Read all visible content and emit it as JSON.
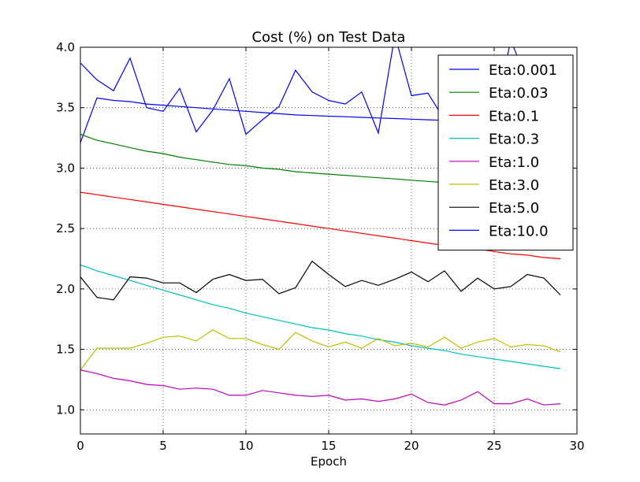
{
  "chart_data": {
    "type": "line",
    "title": "Cost (%) on Test Data",
    "xlabel": "Epoch",
    "ylabel": "",
    "xlim": [
      0,
      30
    ],
    "ylim": [
      0.8,
      4.0
    ],
    "xticks": [
      0,
      5,
      10,
      15,
      20,
      25,
      30
    ],
    "yticks": [
      1.0,
      1.5,
      2.0,
      2.5,
      3.0,
      3.5,
      4.0
    ],
    "xtick_labels": [
      "0",
      "5",
      "10",
      "15",
      "20",
      "25",
      "30"
    ],
    "ytick_labels": [
      "1.0",
      "1.5",
      "2.0",
      "2.5",
      "3.0",
      "3.5",
      "4.0"
    ],
    "grid": true,
    "legend_position": "top-right",
    "x": [
      0,
      1,
      2,
      3,
      4,
      5,
      6,
      7,
      8,
      9,
      10,
      11,
      12,
      13,
      14,
      15,
      16,
      17,
      18,
      19,
      20,
      21,
      22,
      23,
      24,
      25,
      26,
      27,
      28,
      29
    ],
    "series": [
      {
        "name": "Eta:0.001",
        "color": "#0000ff",
        "values": [
          3.21,
          3.58,
          3.56,
          3.55,
          3.53,
          3.52,
          3.51,
          3.5,
          3.49,
          3.48,
          3.47,
          3.46,
          3.45,
          3.44,
          3.435,
          3.43,
          3.425,
          3.42,
          3.415,
          3.41,
          3.405,
          3.4,
          3.395,
          3.39,
          3.385,
          3.38,
          3.375,
          3.37,
          3.365,
          3.36
        ]
      },
      {
        "name": "Eta:0.03",
        "color": "#008000",
        "values": [
          3.28,
          3.23,
          3.2,
          3.17,
          3.14,
          3.12,
          3.09,
          3.07,
          3.05,
          3.03,
          3.02,
          3.0,
          2.99,
          2.97,
          2.96,
          2.95,
          2.94,
          2.93,
          2.92,
          2.91,
          2.9,
          2.89,
          2.88,
          2.87,
          2.86,
          2.85,
          2.84,
          2.83,
          2.82,
          2.81
        ]
      },
      {
        "name": "Eta:0.1",
        "color": "#ff0000",
        "values": [
          2.8,
          2.78,
          2.76,
          2.74,
          2.72,
          2.7,
          2.68,
          2.66,
          2.64,
          2.62,
          2.6,
          2.58,
          2.56,
          2.54,
          2.52,
          2.5,
          2.48,
          2.46,
          2.44,
          2.42,
          2.4,
          2.38,
          2.36,
          2.34,
          2.33,
          2.31,
          2.29,
          2.28,
          2.26,
          2.25
        ]
      },
      {
        "name": "Eta:0.3",
        "color": "#00bfbf",
        "values": [
          2.2,
          2.15,
          2.11,
          2.07,
          2.03,
          1.99,
          1.95,
          1.91,
          1.87,
          1.84,
          1.8,
          1.77,
          1.74,
          1.71,
          1.68,
          1.66,
          1.63,
          1.61,
          1.58,
          1.56,
          1.53,
          1.51,
          1.49,
          1.46,
          1.44,
          1.42,
          1.4,
          1.38,
          1.36,
          1.34
        ]
      },
      {
        "name": "Eta:1.0",
        "color": "#bf00bf",
        "values": [
          1.33,
          1.3,
          1.26,
          1.24,
          1.21,
          1.2,
          1.17,
          1.18,
          1.17,
          1.12,
          1.12,
          1.16,
          1.14,
          1.12,
          1.11,
          1.12,
          1.08,
          1.09,
          1.07,
          1.09,
          1.13,
          1.06,
          1.04,
          1.08,
          1.15,
          1.05,
          1.05,
          1.09,
          1.04,
          1.05
        ]
      },
      {
        "name": "Eta:3.0",
        "color": "#bfbf00",
        "values": [
          1.33,
          1.51,
          1.51,
          1.51,
          1.55,
          1.6,
          1.61,
          1.57,
          1.66,
          1.59,
          1.59,
          1.54,
          1.5,
          1.64,
          1.57,
          1.52,
          1.56,
          1.51,
          1.59,
          1.53,
          1.55,
          1.52,
          1.6,
          1.51,
          1.56,
          1.59,
          1.52,
          1.54,
          1.53,
          1.48
        ]
      },
      {
        "name": "Eta:5.0",
        "color": "#000000",
        "values": [
          2.1,
          1.93,
          1.91,
          2.1,
          2.09,
          2.05,
          2.05,
          1.97,
          2.08,
          2.12,
          2.07,
          2.08,
          1.96,
          2.01,
          2.23,
          2.12,
          2.02,
          2.07,
          2.03,
          2.08,
          2.14,
          2.06,
          2.15,
          1.98,
          2.09,
          2.0,
          2.02,
          2.12,
          2.09,
          1.95
        ]
      },
      {
        "name": "Eta:10.0",
        "color": "#0000ff",
        "values": [
          3.87,
          3.73,
          3.64,
          3.91,
          3.5,
          3.47,
          3.66,
          3.3,
          3.48,
          3.74,
          3.28,
          3.4,
          3.51,
          3.81,
          3.63,
          3.56,
          3.53,
          3.63,
          3.29,
          4.1,
          3.6,
          3.62,
          3.4,
          3.6,
          3.5,
          3.4,
          4.06,
          3.72,
          3.6,
          3.62
        ]
      }
    ]
  }
}
